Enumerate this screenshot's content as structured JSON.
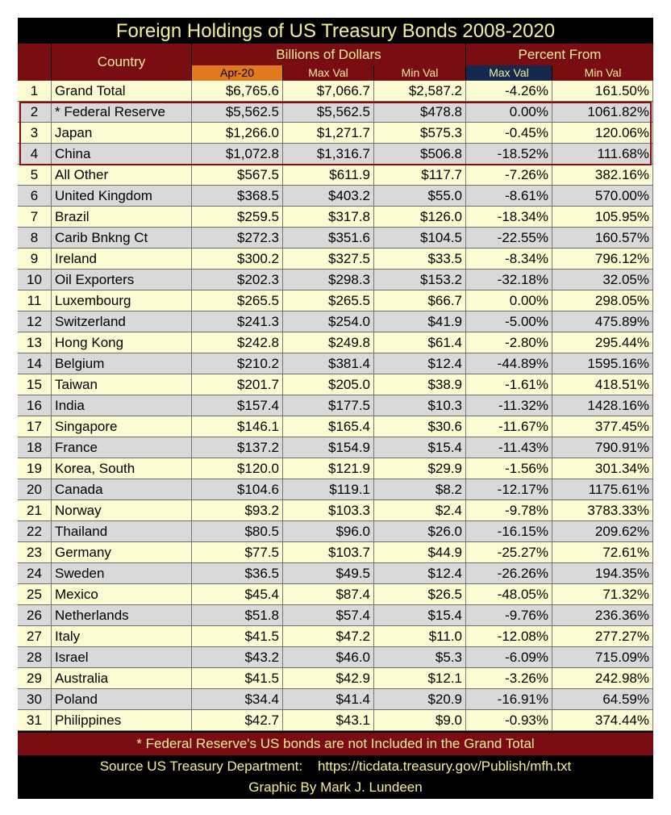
{
  "title": "Foreign Holdings of US Treasury Bonds 2008-2020",
  "headers": {
    "country": "Country",
    "billions": "Billions of Dollars",
    "percent_from": "Percent From",
    "apr20": "Apr-20",
    "max_val": "Max Val",
    "min_val": "Min Val",
    "pct_max_val": "Max Val",
    "pct_min_val": "Min Val"
  },
  "colors": {
    "header_red": "#7a0d12",
    "header_text": "#f5ef9a",
    "apr20_orange": "#e07820",
    "pct_max_navy": "#15294f",
    "row_yellow": "#fcfbd2",
    "row_gray": "#d9d9d9",
    "highlight_border": "#8b0d12"
  },
  "chart_data": {
    "type": "table",
    "title": "Foreign Holdings of US Treasury Bonds 2008-2020",
    "columns": [
      "#",
      "Country",
      "Apr-20",
      "Max Val",
      "Min Val",
      "Max Val",
      "Min Val"
    ],
    "rows": [
      [
        "1",
        "Grand Total",
        "$6,765.6",
        "$7,066.7",
        "$2,587.2",
        "-4.26%",
        "161.50%"
      ],
      [
        "2",
        "* Federal Reserve",
        "$5,562.5",
        "$5,562.5",
        "$478.8",
        "0.00%",
        "1061.82%"
      ],
      [
        "3",
        "Japan",
        "$1,266.0",
        "$1,271.7",
        "$575.3",
        "-0.45%",
        "120.06%"
      ],
      [
        "4",
        "China",
        "$1,072.8",
        "$1,316.7",
        "$506.8",
        "-18.52%",
        "111.68%"
      ],
      [
        "5",
        "All Other",
        "$567.5",
        "$611.9",
        "$117.7",
        "-7.26%",
        "382.16%"
      ],
      [
        "6",
        "United Kingdom",
        "$368.5",
        "$403.2",
        "$55.0",
        "-8.61%",
        "570.00%"
      ],
      [
        "7",
        "Brazil",
        "$259.5",
        "$317.8",
        "$126.0",
        "-18.34%",
        "105.95%"
      ],
      [
        "8",
        "Carib Bnkng Ct",
        "$272.3",
        "$351.6",
        "$104.5",
        "-22.55%",
        "160.57%"
      ],
      [
        "9",
        "Ireland",
        "$300.2",
        "$327.5",
        "$33.5",
        "-8.34%",
        "796.12%"
      ],
      [
        "10",
        "Oil Exporters",
        "$202.3",
        "$298.3",
        "$153.2",
        "-32.18%",
        "32.05%"
      ],
      [
        "11",
        "Luxembourg",
        "$265.5",
        "$265.5",
        "$66.7",
        "0.00%",
        "298.05%"
      ],
      [
        "12",
        "Switzerland",
        "$241.3",
        "$254.0",
        "$41.9",
        "-5.00%",
        "475.89%"
      ],
      [
        "13",
        "Hong Kong",
        "$242.8",
        "$249.8",
        "$61.4",
        "-2.80%",
        "295.44%"
      ],
      [
        "14",
        "Belgium",
        "$210.2",
        "$381.4",
        "$12.4",
        "-44.89%",
        "1595.16%"
      ],
      [
        "15",
        "Taiwan",
        "$201.7",
        "$205.0",
        "$38.9",
        "-1.61%",
        "418.51%"
      ],
      [
        "16",
        "India",
        "$157.4",
        "$177.5",
        "$10.3",
        "-11.32%",
        "1428.16%"
      ],
      [
        "17",
        "Singapore",
        "$146.1",
        "$165.4",
        "$30.6",
        "-11.67%",
        "377.45%"
      ],
      [
        "18",
        "France",
        "$137.2",
        "$154.9",
        "$15.4",
        "-11.43%",
        "790.91%"
      ],
      [
        "19",
        "Korea, South",
        "$120.0",
        "$121.9",
        "$29.9",
        "-1.56%",
        "301.34%"
      ],
      [
        "20",
        "Canada",
        "$104.6",
        "$119.1",
        "$8.2",
        "-12.17%",
        "1175.61%"
      ],
      [
        "21",
        "Norway",
        "$93.2",
        "$103.3",
        "$2.4",
        "-9.78%",
        "3783.33%"
      ],
      [
        "22",
        "Thailand",
        "$80.5",
        "$96.0",
        "$26.0",
        "-16.15%",
        "209.62%"
      ],
      [
        "23",
        "Germany",
        "$77.5",
        "$103.7",
        "$44.9",
        "-25.27%",
        "72.61%"
      ],
      [
        "24",
        "Sweden",
        "$36.5",
        "$49.5",
        "$12.4",
        "-26.26%",
        "194.35%"
      ],
      [
        "25",
        "Mexico",
        "$45.4",
        "$87.4",
        "$26.5",
        "-48.05%",
        "71.32%"
      ],
      [
        "26",
        "Netherlands",
        "$51.8",
        "$57.4",
        "$15.4",
        "-9.76%",
        "236.36%"
      ],
      [
        "27",
        "Italy",
        "$41.5",
        "$47.2",
        "$11.0",
        "-12.08%",
        "277.27%"
      ],
      [
        "28",
        "Israel",
        "$43.2",
        "$46.0",
        "$5.3",
        "-6.09%",
        "715.09%"
      ],
      [
        "29",
        "Australia",
        "$41.5",
        "$42.9",
        "$12.1",
        "-3.26%",
        "242.98%"
      ],
      [
        "30",
        "Poland",
        "$34.4",
        "$41.4",
        "$20.9",
        "-16.91%",
        "64.59%"
      ],
      [
        "31",
        "Philippines",
        "$42.7",
        "$43.1",
        "$9.0",
        "-0.93%",
        "374.44%"
      ]
    ],
    "row_shading": [
      "yellow",
      "gray",
      "yellow",
      "gray",
      "yellow",
      "gray",
      "yellow",
      "gray",
      "yellow",
      "gray",
      "yellow",
      "gray",
      "yellow",
      "gray",
      "yellow",
      "gray",
      "yellow",
      "gray",
      "yellow",
      "gray",
      "yellow",
      "gray",
      "yellow",
      "gray",
      "yellow",
      "gray",
      "yellow",
      "gray",
      "yellow",
      "gray",
      "yellow"
    ]
  },
  "footer": {
    "note": "* Federal Reserve's US bonds are not Included in the Grand Total",
    "source_label": "Source US Treasury Department:",
    "source_url": "https://ticdata.treasury.gov/Publish/mfh.txt",
    "credit": "Graphic By Mark J. Lundeen"
  }
}
